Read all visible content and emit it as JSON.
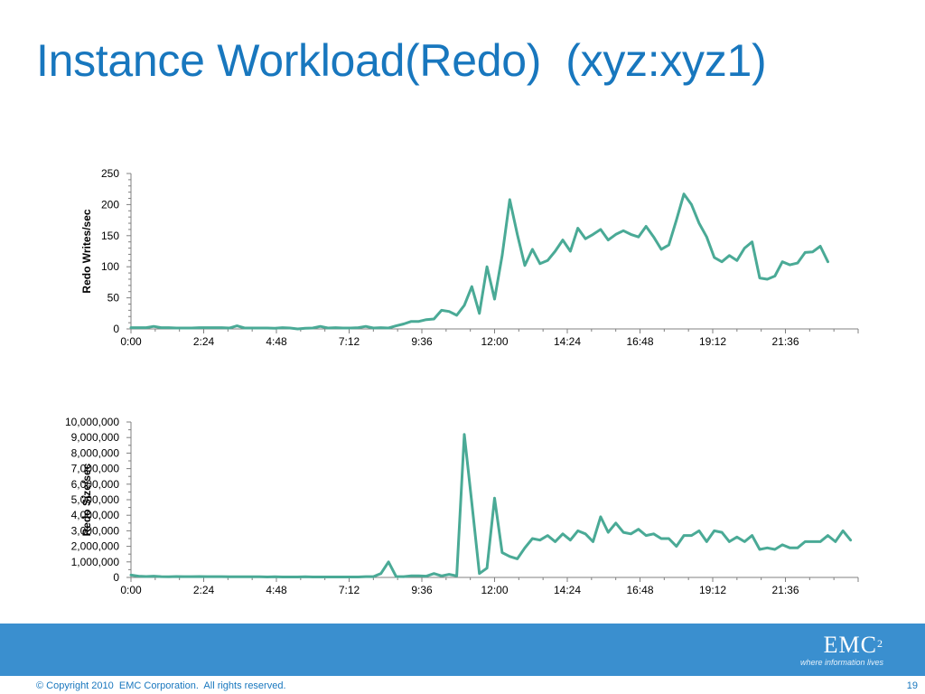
{
  "slide": {
    "title": "Instance Workload(Redo)  (xyz:xyz1)",
    "copyright": "© Copyright 2010  EMC Corporation.  All rights reserved.",
    "page_number": "19",
    "logo_text": "EMC",
    "logo_superscript": "2",
    "logo_tagline": "where information lives"
  },
  "colors": {
    "title": "#1877be",
    "line": "#4aaa96",
    "footer_bar": "#3a8fcf"
  },
  "chart_data": [
    {
      "type": "line",
      "title": "",
      "xlabel": "",
      "ylabel": "Redo Writes/sec",
      "ylim": [
        0,
        250
      ],
      "y_ticks": [
        0,
        50,
        100,
        150,
        200,
        250
      ],
      "y_tick_labels": [
        "0",
        "50",
        "100",
        "150",
        "200",
        "250"
      ],
      "x_tick_labels": [
        "0:00",
        "2:24",
        "4:48",
        "7:12",
        "9:36",
        "12:00",
        "14:24",
        "16:48",
        "19:12",
        "21:36"
      ],
      "x_sample_interval_minutes": 15,
      "series": [
        {
          "values": [
            2,
            2,
            2,
            4,
            2,
            2,
            1.5,
            1.5,
            1.5,
            2,
            2,
            2,
            2,
            1.5,
            5,
            1.5,
            1.5,
            1.5,
            1.5,
            1,
            2,
            1.5,
            0,
            1,
            1.5,
            4,
            1.5,
            2,
            1.5,
            1.5,
            2,
            4,
            1.5,
            2,
            1.5,
            5,
            8,
            12,
            12,
            15,
            16,
            30,
            28,
            22,
            38,
            68,
            25,
            100,
            48,
            118,
            208,
            152,
            102,
            128,
            105,
            110,
            125,
            143,
            125,
            162,
            145,
            152,
            160,
            143,
            152,
            158,
            152,
            148,
            165,
            148,
            128,
            135,
            175,
            217,
            200,
            170,
            148,
            115,
            108,
            118,
            110,
            130,
            140,
            82,
            80,
            85,
            108,
            103,
            106,
            123,
            124,
            133,
            108
          ]
        }
      ]
    },
    {
      "type": "line",
      "title": "",
      "xlabel": "",
      "ylabel": "Redo Size/sec",
      "ylim": [
        0,
        10000000
      ],
      "y_ticks": [
        0,
        1000000,
        2000000,
        3000000,
        4000000,
        5000000,
        6000000,
        7000000,
        8000000,
        9000000,
        10000000
      ],
      "y_tick_labels": [
        "0",
        "1,000,000",
        "2,000,000",
        "3,000,000",
        "4,000,000",
        "5,000,000",
        "6,000,000",
        "7,000,000",
        "8,000,000",
        "9,000,000",
        "10,000,000"
      ],
      "x_tick_labels": [
        "0:00",
        "2:24",
        "4:48",
        "7:12",
        "9:36",
        "12:00",
        "14:24",
        "16:48",
        "19:12",
        "21:36"
      ],
      "x_sample_interval_minutes": 15,
      "series": [
        {
          "values": [
            150000,
            80000,
            60000,
            80000,
            50000,
            40000,
            60000,
            50000,
            50000,
            60000,
            50000,
            50000,
            50000,
            40000,
            40000,
            40000,
            40000,
            40000,
            30000,
            40000,
            30000,
            30000,
            30000,
            40000,
            30000,
            30000,
            30000,
            30000,
            30000,
            30000,
            30000,
            50000,
            50000,
            250000,
            1000000,
            60000,
            50000,
            100000,
            100000,
            80000,
            250000,
            100000,
            200000,
            100000,
            9200000,
            4800000,
            250000,
            600000,
            5100000,
            1600000,
            1350000,
            1200000,
            1900000,
            2500000,
            2400000,
            2700000,
            2300000,
            2800000,
            2400000,
            3000000,
            2800000,
            2300000,
            3900000,
            2900000,
            3500000,
            2900000,
            2800000,
            3100000,
            2700000,
            2800000,
            2500000,
            2500000,
            2000000,
            2700000,
            2700000,
            3000000,
            2300000,
            3000000,
            2900000,
            2300000,
            2600000,
            2300000,
            2700000,
            1800000,
            1900000,
            1800000,
            2100000,
            1900000,
            1900000,
            2300000,
            2300000,
            2300000,
            2700000,
            2300000,
            3000000,
            2400000
          ]
        }
      ]
    }
  ]
}
